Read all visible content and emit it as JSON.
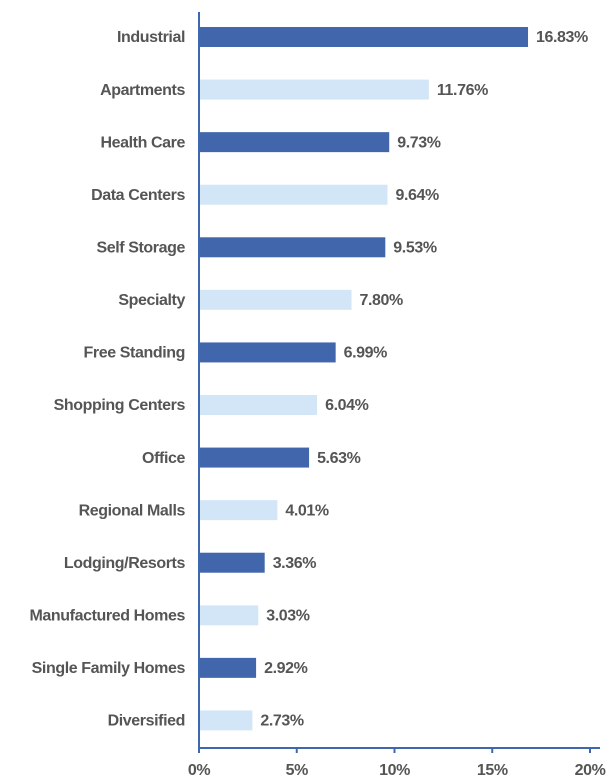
{
  "chart_data": {
    "type": "bar",
    "orientation": "horizontal",
    "categories": [
      "Industrial",
      "Apartments",
      "Health Care",
      "Data Centers",
      "Self Storage",
      "Specialty",
      "Free Standing",
      "Shopping Centers",
      "Office",
      "Regional Malls",
      "Lodging/Resorts",
      "Manufactured Homes",
      "Single Family Homes",
      "Diversified"
    ],
    "values": [
      16.83,
      11.76,
      9.73,
      9.64,
      9.53,
      7.8,
      6.99,
      6.04,
      5.63,
      4.01,
      3.36,
      3.03,
      2.92,
      2.73
    ],
    "value_labels": [
      "16.83%",
      "11.76%",
      "9.73%",
      "9.64%",
      "9.53%",
      "7.80%",
      "6.99%",
      "6.04%",
      "5.63%",
      "4.01%",
      "3.36%",
      "3.03%",
      "2.92%",
      "2.73%"
    ],
    "colors": [
      "#4266ac",
      "#d3e6f7"
    ],
    "xlim": [
      0,
      20
    ],
    "xticks": [
      {
        "value": 0,
        "label": "0%"
      },
      {
        "value": 5,
        "label": "5%"
      },
      {
        "value": 10,
        "label": "10%"
      },
      {
        "value": 15,
        "label": "15%"
      },
      {
        "value": 20,
        "label": "20%"
      }
    ],
    "grid": false
  }
}
